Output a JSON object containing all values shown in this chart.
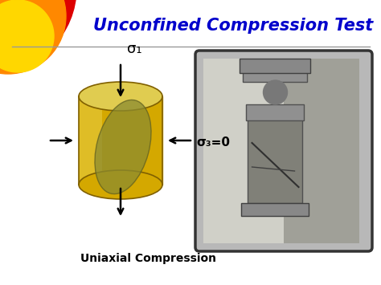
{
  "title": "Unconfined Compression Test",
  "title_color": "#0000CC",
  "title_fontsize": 15,
  "subtitle": "Uniaxial Compression",
  "subtitle_fontsize": 10,
  "background_color": "#FFFFFF",
  "cylinder_gold": "#D4A800",
  "cylinder_gold_light": "#E8CC40",
  "cylinder_gold_top": "#E0CC50",
  "cylinder_olive": "#8B8B30",
  "red_circ_color": "#DD0000",
  "orange_circ_color": "#FF8800",
  "yellow_circ_color": "#FFD700",
  "sigma1_label": "σ₁",
  "sigma3_label": "σ₃=0",
  "sep_line_color": "#999999",
  "photo_border": "#333333",
  "photo_bg": "#B8B8B8",
  "spec_color": "#808070",
  "cap_color": "#909090"
}
